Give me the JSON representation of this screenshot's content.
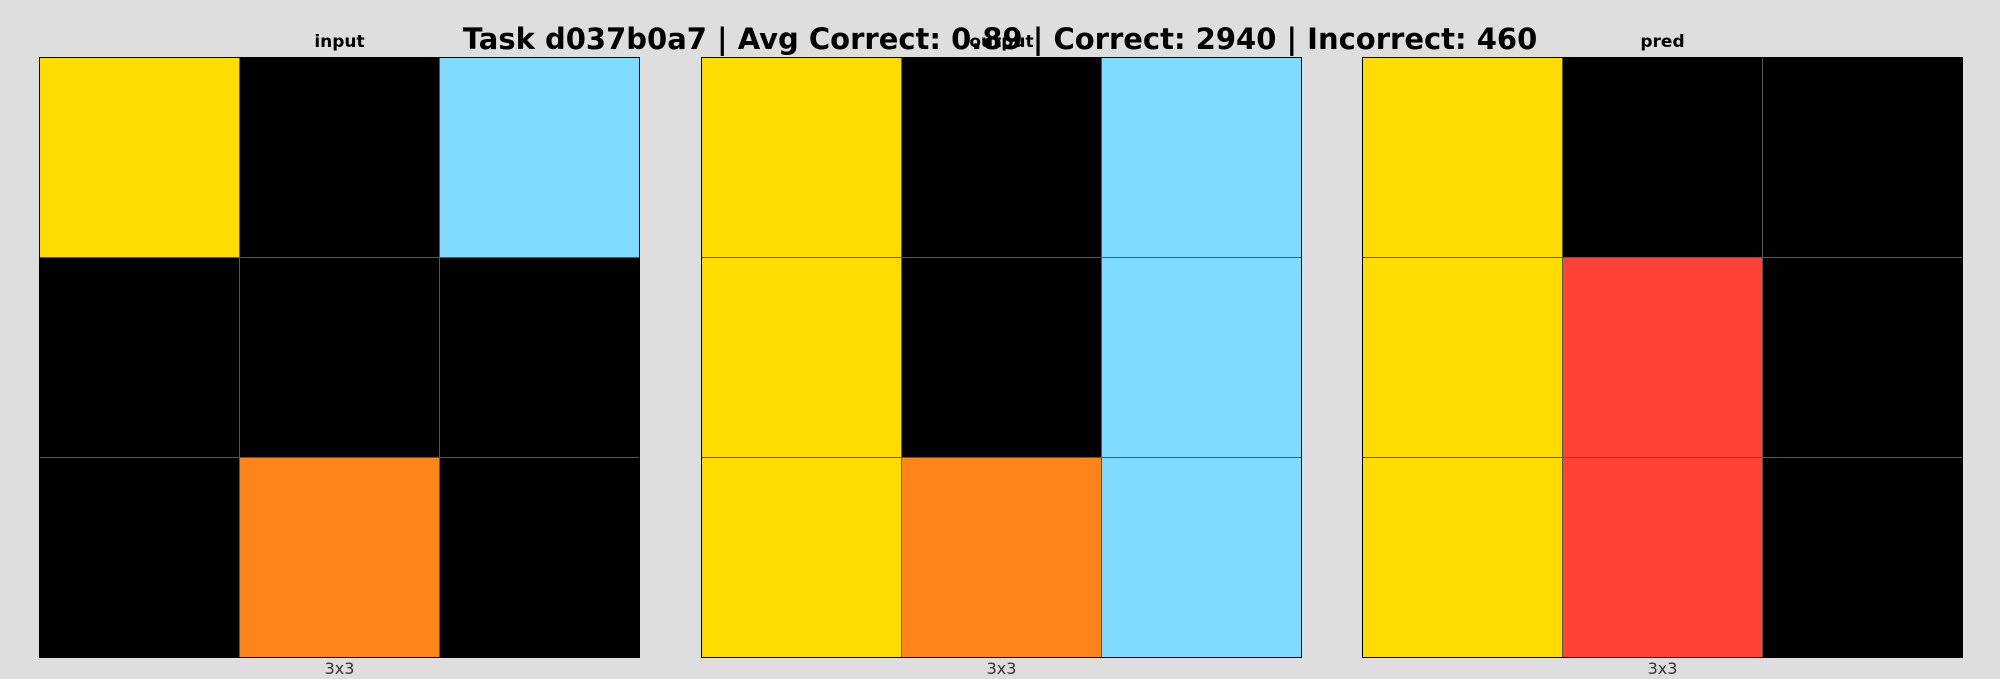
{
  "title": "Task d037b0a7 | Avg Correct: 0.89 | Correct: 2940 | Incorrect: 460",
  "palette": {
    "black": "#000000",
    "yellow": "#FFDC00",
    "lightblue": "#7FDBFF",
    "orange": "#FF851B",
    "red": "#FF4136"
  },
  "panels": [
    {
      "name": "input",
      "label": "input",
      "size_label": "3x3",
      "grid": [
        [
          "yellow",
          "black",
          "lightblue"
        ],
        [
          "black",
          "black",
          "black"
        ],
        [
          "black",
          "orange",
          "black"
        ]
      ]
    },
    {
      "name": "output",
      "label": "output",
      "size_label": "3x3",
      "grid": [
        [
          "yellow",
          "black",
          "lightblue"
        ],
        [
          "yellow",
          "black",
          "lightblue"
        ],
        [
          "yellow",
          "orange",
          "lightblue"
        ]
      ]
    },
    {
      "name": "pred",
      "label": "pred",
      "size_label": "3x3",
      "grid": [
        [
          "yellow",
          "black",
          "black"
        ],
        [
          "yellow",
          "red",
          "black"
        ],
        [
          "yellow",
          "red",
          "black"
        ]
      ]
    }
  ]
}
